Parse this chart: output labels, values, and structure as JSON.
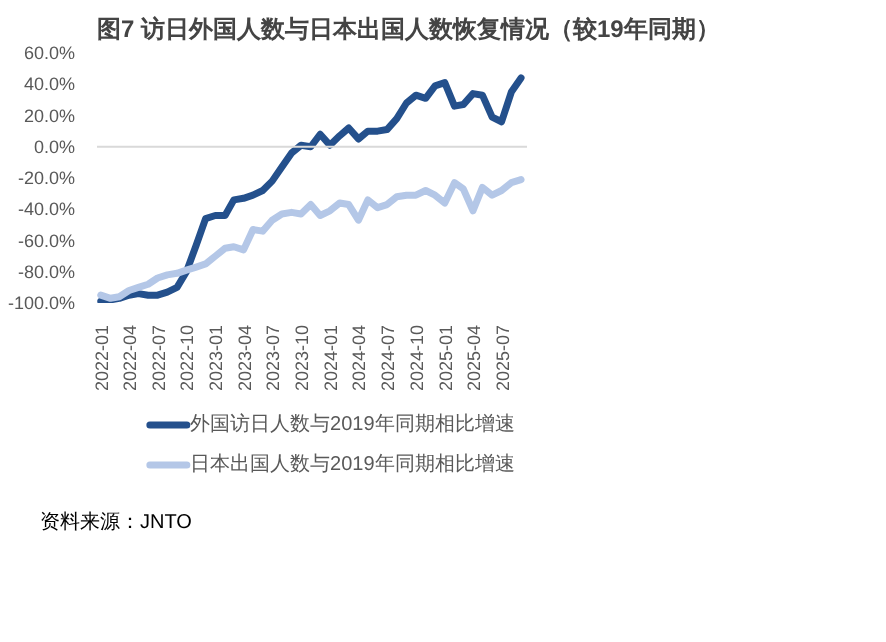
{
  "chart_data": {
    "type": "line",
    "title": "图7  访日外国人数与日本出国人数恢复情况（较19年同期）",
    "x": [
      "2022-01",
      "2022-02",
      "2022-03",
      "2022-04",
      "2022-05",
      "2022-06",
      "2022-07",
      "2022-08",
      "2022-09",
      "2022-10",
      "2022-11",
      "2022-12",
      "2023-01",
      "2023-02",
      "2023-03",
      "2023-04",
      "2023-05",
      "2023-06",
      "2023-07",
      "2023-08",
      "2023-09",
      "2023-10",
      "2023-11",
      "2023-12",
      "2024-01",
      "2024-02",
      "2024-03",
      "2024-04",
      "2024-05",
      "2024-06",
      "2024-07",
      "2024-08",
      "2024-09",
      "2024-10",
      "2024-11",
      "2024-12",
      "2025-01",
      "2025-02",
      "2025-03",
      "2025-04",
      "2025-05",
      "2025-06",
      "2025-07",
      "2025-08",
      "2025-09"
    ],
    "series": [
      {
        "name": "外国访日人数与2019年同期相比增速",
        "color": "#24508c",
        "values": [
          -99,
          -98,
          -97,
          -95,
          -94,
          -95,
          -95,
          -93,
          -90,
          -80,
          -63,
          -46,
          -44,
          -44,
          -34,
          -33,
          -31,
          -28,
          -22,
          -13,
          -4,
          1,
          0,
          8,
          1,
          7,
          12,
          5,
          10,
          10,
          11,
          18,
          28,
          33,
          31,
          39,
          41,
          26,
          27,
          34,
          33,
          19,
          16,
          35,
          44
        ]
      },
      {
        "name": "日本出国人数与2019年同期相比增速",
        "color": "#b4c7e7",
        "values": [
          -95,
          -97,
          -96,
          -92,
          -90,
          -88,
          -84,
          -82,
          -81,
          -79,
          -77,
          -75,
          -70,
          -65,
          -64,
          -66,
          -53,
          -54,
          -47,
          -43,
          -42,
          -43,
          -37,
          -44,
          -41,
          -36,
          -37,
          -47,
          -34,
          -39,
          -37,
          -32,
          -31,
          -31,
          -28,
          -31,
          -36,
          -23,
          -27,
          -41,
          -26,
          -31,
          -28,
          -23,
          -21
        ]
      }
    ],
    "xlim": [
      "2021-12-20",
      "2025-09-20"
    ],
    "xticks": [
      {
        "value": "2022-01",
        "label": "2022-01"
      },
      {
        "value": "2022-04",
        "label": "2022-04"
      },
      {
        "value": "2022-07",
        "label": "2022-07"
      },
      {
        "value": "2022-10",
        "label": "2022-10"
      },
      {
        "value": "2023-01",
        "label": "2023-01"
      },
      {
        "value": "2023-04",
        "label": "2023-04"
      },
      {
        "value": "2023-07",
        "label": "2023-07"
      },
      {
        "value": "2023-10",
        "label": "2023-10"
      },
      {
        "value": "2024-01",
        "label": "2024-01"
      },
      {
        "value": "2024-04",
        "label": "2024-04"
      },
      {
        "value": "2024-07",
        "label": "2024-07"
      },
      {
        "value": "2024-10",
        "label": "2024-10"
      },
      {
        "value": "2025-01",
        "label": "2025-01"
      },
      {
        "value": "2025-04",
        "label": "2025-04"
      },
      {
        "value": "2025-07",
        "label": "2025-07"
      }
    ],
    "ylim": [
      -100,
      60
    ],
    "yticks": [
      {
        "value": -100,
        "label": "-100.0%"
      },
      {
        "value": -80,
        "label": "-80.0%"
      },
      {
        "value": -60,
        "label": "-60.0%"
      },
      {
        "value": -40,
        "label": "-40.0%"
      },
      {
        "value": -20,
        "label": "-20.0%"
      },
      {
        "value": 0,
        "label": "0.0%"
      },
      {
        "value": 20,
        "label": "20.0%"
      },
      {
        "value": 40,
        "label": "40.0%"
      },
      {
        "value": 60,
        "label": "60.0%"
      }
    ],
    "ref_lines": [
      {
        "axis": "y",
        "value": 0,
        "label": null,
        "color": "#d9d9d9"
      }
    ],
    "grid": false,
    "legend": "bottom",
    "marker": "none",
    "line_style": "solid",
    "annotations": [
      "资料来源：JNTO"
    ]
  }
}
